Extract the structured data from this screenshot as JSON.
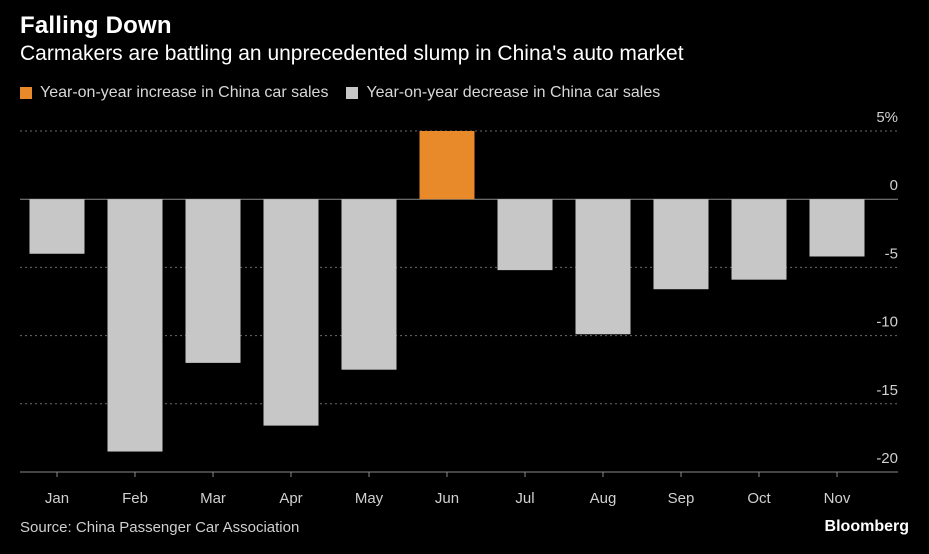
{
  "header": {
    "title": "Falling Down",
    "subtitle": "Carmakers are battling an unprecedented slump in China's auto market"
  },
  "legend": {
    "items": [
      {
        "label": "Year-on-year increase in China car sales",
        "color": "#e8892a"
      },
      {
        "label": "Year-on-year decrease in China car sales",
        "color": "#c7c7c7"
      }
    ]
  },
  "footer": {
    "source": "Source: China Passenger Car Association",
    "brand": "Bloomberg"
  },
  "chart_data": {
    "type": "bar",
    "categories": [
      "Jan",
      "Feb",
      "Mar",
      "Apr",
      "May",
      "Jun",
      "Jul",
      "Aug",
      "Sep",
      "Oct",
      "Nov"
    ],
    "values": [
      -4,
      -18.5,
      -12,
      -16.6,
      -12.5,
      5,
      -5.2,
      -9.9,
      -6.6,
      -5.9,
      -4.2
    ],
    "ylim": [
      -20,
      5
    ],
    "yticks": [
      5,
      0,
      -5,
      -10,
      -15,
      -20
    ],
    "ytick_labels": [
      "5%",
      "0",
      "-5",
      "-10",
      "-15",
      "-20"
    ],
    "positive_color": "#e8892a",
    "negative_color": "#c7c7c7",
    "grid": true,
    "title": "",
    "xlabel": "",
    "ylabel": ""
  }
}
